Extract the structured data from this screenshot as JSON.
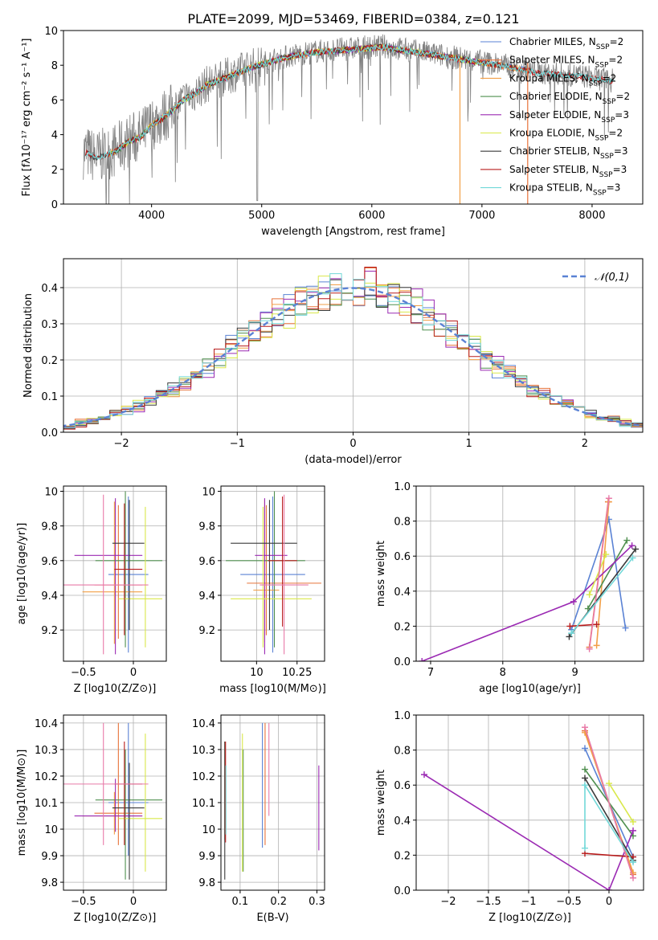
{
  "figure": {
    "title": "PLATE=2099, MJD=53469, FIBERID=0384, z=0.121"
  },
  "chart_data": [
    {
      "id": "spectrum",
      "type": "line",
      "xlabel": "wavelength [Angstrom, rest frame]",
      "ylabel": "Flux [fλ10⁻¹⁷ erg cm⁻² s⁻¹ A⁻¹]",
      "xlim": [
        3200,
        8460
      ],
      "ylim": [
        0,
        10
      ],
      "xticks": [
        4000,
        5000,
        6000,
        7000,
        8000
      ],
      "yticks": [
        0,
        2,
        4,
        6,
        8,
        10
      ],
      "grid": false,
      "legend_position": "top-right",
      "data_color": "#808080",
      "series": [
        {
          "name": "Chabrier MILES, N_SSP=2",
          "color": "#5a82d4"
        },
        {
          "name": "Salpeter MILES, N_SSP=2",
          "color": "#e8733a"
        },
        {
          "name": "Kroupa MILES, N_SSP=2",
          "color": "#f29f47"
        },
        {
          "name": "Chabrier ELODIE, N_SSP=2",
          "color": "#4f8f4f"
        },
        {
          "name": "Salpeter ELODIE, N_SSP=3",
          "color": "#9b2ab3"
        },
        {
          "name": "Kroupa ELODIE, N_SSP=2",
          "color": "#d9e84a"
        },
        {
          "name": "Chabrier STELIB, N_SSP=3",
          "color": "#3a3a3a"
        },
        {
          "name": "Salpeter STELIB, N_SSP=3",
          "color": "#b81d1d"
        },
        {
          "name": "Kroupa STELIB, N_SSP=3",
          "color": "#72d8d8"
        }
      ],
      "continuum_x": [
        3400,
        3500,
        3600,
        3700,
        3800,
        3900,
        4000,
        4100,
        4200,
        4300,
        4400,
        4500,
        4700,
        4900,
        5100,
        5300,
        5500,
        5700,
        5900,
        6100,
        6300,
        6500,
        6700,
        6900,
        7100,
        7300,
        7500,
        7700,
        7900,
        8100,
        8200
      ],
      "continuum_y": [
        3.0,
        2.7,
        2.9,
        3.2,
        3.7,
        3.9,
        4.6,
        5.0,
        5.5,
        6.1,
        6.4,
        6.9,
        7.4,
        7.9,
        8.3,
        8.6,
        8.8,
        8.9,
        9.0,
        9.1,
        8.9,
        8.7,
        8.5,
        8.3,
        8.1,
        7.9,
        7.6,
        7.5,
        7.4,
        7.2,
        7.1
      ],
      "annotations": [
        {
          "text": "PLATE=2099, MJD=53469, FIBERID=0384, z=0.121"
        }
      ]
    },
    {
      "id": "residuals",
      "type": "line",
      "xlabel": "(data-model)/error",
      "ylabel": "Normed distribution",
      "xlim": [
        -2.5,
        2.5
      ],
      "ylim": [
        0,
        0.48
      ],
      "xticks": [
        -2,
        -1,
        0,
        1,
        2
      ],
      "yticks": [
        0.0,
        0.1,
        0.2,
        0.3,
        0.4
      ],
      "grid": true,
      "legend_position": "top-right",
      "reference": {
        "name": "𝒩(0,1)",
        "color": "#5a82d4",
        "mu": 0,
        "sigma": 1
      }
    },
    {
      "id": "age-vs-Z",
      "type": "scatter",
      "xlabel": "Z [log10(Z/Z⊙)]",
      "ylabel": "age  [log10(age/yr)]",
      "xlim": [
        -0.7,
        0.33
      ],
      "ylim": [
        9.02,
        10.03
      ],
      "xticks": [
        -0.5,
        0.0
      ],
      "yticks": [
        9.2,
        9.4,
        9.6,
        9.8,
        10.0
      ],
      "grid": true,
      "points": [
        {
          "x": -0.05,
          "y": 9.52,
          "xerr": [
            0.2,
            0.2
          ],
          "yerr": [
            0.45,
            0.45
          ],
          "color": "#5a82d4"
        },
        {
          "x": -0.15,
          "y": 9.46,
          "xerr": [
            0.24,
            0.24
          ],
          "yerr": [
            0.31,
            0.46
          ],
          "color": "#e8733a"
        },
        {
          "x": -0.19,
          "y": 9.42,
          "xerr": [
            0.32,
            0.28
          ],
          "yerr": [
            0.3,
            0.52
          ],
          "color": "#f29f47"
        },
        {
          "x": -0.08,
          "y": 9.6,
          "xerr": [
            0.3,
            0.37
          ],
          "yerr": [
            0.5,
            0.4
          ],
          "color": "#4f8f4f"
        },
        {
          "x": -0.18,
          "y": 9.63,
          "xerr": [
            0.41,
            0.27
          ],
          "yerr": [
            0.57,
            0.33
          ],
          "color": "#9b2ab3"
        },
        {
          "x": 0.12,
          "y": 9.38,
          "xerr": [
            0.27,
            0.17
          ],
          "yerr": [
            0.28,
            0.53
          ],
          "color": "#d9e84a"
        },
        {
          "x": -0.04,
          "y": 9.7,
          "xerr": [
            0.17,
            0.15
          ],
          "yerr": [
            0.5,
            0.25
          ],
          "color": "#3a3a3a"
        },
        {
          "x": -0.09,
          "y": 9.55,
          "xerr": [
            0.1,
            0.18
          ],
          "yerr": [
            0.38,
            0.38
          ],
          "color": "#b81d1d"
        },
        {
          "x": -0.3,
          "y": 9.46,
          "xerr": [
            0.4,
            0.45
          ],
          "yerr": [
            0.4,
            0.52
          ],
          "color": "#e87aa8"
        }
      ]
    },
    {
      "id": "age-vs-mass",
      "type": "scatter",
      "xlabel": "mass [log10(M/M⊙)]",
      "ylabel": "",
      "xlim": [
        9.78,
        10.42
      ],
      "ylim": [
        9.02,
        10.03
      ],
      "xticks": [
        10.0,
        10.25
      ],
      "yticks": [
        9.2,
        9.4,
        9.6,
        9.8,
        10.0
      ],
      "grid": true,
      "points": [
        {
          "x": 10.1,
          "y": 9.52,
          "xerr": [
            0.2,
            0.2
          ],
          "yerr": [
            0.45,
            0.45
          ],
          "color": "#5a82d4"
        },
        {
          "x": 10.06,
          "y": 9.47,
          "xerr": [
            0.12,
            0.34
          ],
          "yerr": [
            0.3,
            0.45
          ],
          "color": "#e8733a"
        },
        {
          "x": 10.05,
          "y": 9.43,
          "xerr": [
            0.07,
            0.09
          ],
          "yerr": [
            0.3,
            0.52
          ],
          "color": "#f29f47"
        },
        {
          "x": 10.11,
          "y": 9.6,
          "xerr": [
            0.3,
            0.19
          ],
          "yerr": [
            0.5,
            0.4
          ],
          "color": "#4f8f4f"
        },
        {
          "x": 10.05,
          "y": 9.63,
          "xerr": [
            0.06,
            0.14
          ],
          "yerr": [
            0.57,
            0.33
          ],
          "color": "#9b2ab3"
        },
        {
          "x": 10.04,
          "y": 9.38,
          "xerr": [
            0.2,
            0.3
          ],
          "yerr": [
            0.28,
            0.53
          ],
          "color": "#d9e84a"
        },
        {
          "x": 10.08,
          "y": 9.7,
          "xerr": [
            0.24,
            0.17
          ],
          "yerr": [
            0.5,
            0.25
          ],
          "color": "#3a3a3a"
        },
        {
          "x": 10.16,
          "y": 9.6,
          "xerr": [
            0.09,
            0.09
          ],
          "yerr": [
            0.38,
            0.37
          ],
          "color": "#b81d1d"
        },
        {
          "x": 10.17,
          "y": 9.46,
          "xerr": [
            0.15,
            0.15
          ],
          "yerr": [
            0.4,
            0.52
          ],
          "color": "#e87aa8"
        }
      ]
    },
    {
      "id": "massweight-vs-age",
      "type": "line",
      "xlabel": "age  [log10(age/yr)]",
      "ylabel": "mass weight",
      "xlim": [
        6.8,
        9.95
      ],
      "ylim": [
        0,
        1
      ],
      "xticks": [
        7,
        8,
        9
      ],
      "yticks": [
        0.0,
        0.2,
        0.4,
        0.6,
        0.8,
        1.0
      ],
      "grid": true,
      "series": [
        {
          "color": "#5a82d4",
          "x": [
            8.95,
            9.47,
            9.7
          ],
          "y": [
            0.18,
            0.81,
            0.19
          ]
        },
        {
          "color": "#e8733a",
          "x": [
            9.2,
            9.46
          ],
          "y": [
            0.08,
            0.91
          ]
        },
        {
          "color": "#f29f47",
          "x": [
            9.3,
            9.47
          ],
          "y": [
            0.09,
            0.91
          ]
        },
        {
          "color": "#4f8f4f",
          "x": [
            9.18,
            9.72
          ],
          "y": [
            0.3,
            0.69
          ]
        },
        {
          "color": "#9b2ab3",
          "x": [
            6.88,
            8.98,
            9.79
          ],
          "y": [
            0.0,
            0.34,
            0.66
          ]
        },
        {
          "color": "#d9e84a",
          "x": [
            9.2,
            9.43
          ],
          "y": [
            0.38,
            0.61
          ]
        },
        {
          "color": "#3a3a3a",
          "x": [
            8.92,
            9.84
          ],
          "y": [
            0.14,
            0.64
          ]
        },
        {
          "color": "#b81d1d",
          "x": [
            8.93,
            9.3
          ],
          "y": [
            0.2,
            0.21
          ]
        },
        {
          "color": "#e87aa8",
          "x": [
            9.2,
            9.47
          ],
          "y": [
            0.07,
            0.93
          ]
        },
        {
          "color": "#72d8d8",
          "x": [
            8.95,
            9.8
          ],
          "y": [
            0.16,
            0.59
          ]
        }
      ]
    },
    {
      "id": "mass-vs-Z",
      "type": "scatter",
      "xlabel": "Z [log10(Z/Z⊙)]",
      "ylabel": "mass [log10(M/M⊙)]",
      "xlim": [
        -0.7,
        0.33
      ],
      "ylim": [
        9.77,
        10.43
      ],
      "xticks": [
        -0.5,
        0.0
      ],
      "yticks": [
        9.8,
        9.9,
        10.0,
        10.1,
        10.2,
        10.3,
        10.4
      ],
      "grid": true,
      "points": [
        {
          "x": -0.05,
          "y": 10.1,
          "xerr": [
            0.2,
            0.2
          ],
          "yerr": [
            0.2,
            0.3
          ],
          "color": "#5a82d4"
        },
        {
          "x": -0.15,
          "y": 10.06,
          "xerr": [
            0.24,
            0.24
          ],
          "yerr": [
            0.12,
            0.34
          ],
          "color": "#e8733a"
        },
        {
          "x": -0.19,
          "y": 10.05,
          "xerr": [
            0.32,
            0.28
          ],
          "yerr": [
            0.07,
            0.09
          ],
          "color": "#f29f47"
        },
        {
          "x": -0.08,
          "y": 10.11,
          "xerr": [
            0.3,
            0.37
          ],
          "yerr": [
            0.3,
            0.19
          ],
          "color": "#4f8f4f"
        },
        {
          "x": -0.18,
          "y": 10.05,
          "xerr": [
            0.41,
            0.27
          ],
          "yerr": [
            0.06,
            0.14
          ],
          "color": "#9b2ab3"
        },
        {
          "x": 0.12,
          "y": 10.04,
          "xerr": [
            0.27,
            0.17
          ],
          "yerr": [
            0.2,
            0.32
          ],
          "color": "#d9e84a"
        },
        {
          "x": -0.04,
          "y": 10.08,
          "xerr": [
            0.17,
            0.15
          ],
          "yerr": [
            0.27,
            0.17
          ],
          "color": "#3a3a3a"
        },
        {
          "x": -0.09,
          "y": 10.17,
          "xerr": [
            0.1,
            0.18
          ],
          "yerr": [
            0.23,
            0.16
          ],
          "color": "#b81d1d"
        },
        {
          "x": -0.3,
          "y": 10.17,
          "xerr": [
            0.4,
            0.45
          ],
          "yerr": [
            0.23,
            0.23
          ],
          "color": "#e87aa8"
        }
      ]
    },
    {
      "id": "mass-vs-ebv",
      "type": "scatter",
      "xlabel": "E(B-V)",
      "ylabel": "",
      "xlim": [
        0.05,
        0.32
      ],
      "ylim": [
        9.77,
        10.43
      ],
      "xticks": [
        0.1,
        0.2,
        0.3
      ],
      "yticks": [
        9.8,
        9.9,
        10.0,
        10.1,
        10.2,
        10.3,
        10.4
      ],
      "grid": true,
      "points": [
        {
          "x": 0.158,
          "y": 10.1,
          "yerr": [
            0.17,
            0.3
          ],
          "color": "#5a82d4"
        },
        {
          "x": 0.165,
          "y": 10.06,
          "yerr": [
            0.12,
            0.34
          ],
          "color": "#e8733a"
        },
        {
          "x": 0.06,
          "y": 10.05,
          "yerr": [
            0.09,
            0.28
          ],
          "color": "#f29f47"
        },
        {
          "x": 0.108,
          "y": 10.11,
          "yerr": [
            0.27,
            0.19
          ],
          "color": "#4f8f4f"
        },
        {
          "x": 0.305,
          "y": 10.05,
          "yerr": [
            0.13,
            0.19
          ],
          "color": "#9b2ab3"
        },
        {
          "x": 0.106,
          "y": 10.04,
          "yerr": [
            0.2,
            0.32
          ],
          "color": "#d9e84a"
        },
        {
          "x": 0.06,
          "y": 10.04,
          "yerr": [
            0.23,
            0.29
          ],
          "color": "#3a3a3a"
        },
        {
          "x": 0.062,
          "y": 10.17,
          "yerr": [
            0.22,
            0.16
          ],
          "color": "#b81d1d"
        },
        {
          "x": 0.175,
          "y": 10.17,
          "yerr": [
            0.12,
            0.23
          ],
          "color": "#e87aa8"
        },
        {
          "x": 0.063,
          "y": 10.1,
          "yerr": [
            0.12,
            0.14
          ],
          "color": "#72d8d8"
        }
      ]
    },
    {
      "id": "massweight-vs-Z",
      "type": "line",
      "xlabel": "Z [log10(Z/Z⊙)]",
      "ylabel": "mass weight",
      "xlim": [
        -2.4,
        0.43
      ],
      "ylim": [
        0,
        1
      ],
      "xticks": [
        -2.0,
        -1.5,
        -1.0,
        -0.5,
        0.0
      ],
      "yticks": [
        0.0,
        0.2,
        0.4,
        0.6,
        0.8,
        1.0
      ],
      "grid": true,
      "series": [
        {
          "color": "#5a82d4",
          "x": [
            -0.3,
            0.3
          ],
          "y": [
            0.81,
            0.19
          ]
        },
        {
          "color": "#e8733a",
          "x": [
            -0.3,
            0.3
          ],
          "y": [
            0.91,
            0.09
          ]
        },
        {
          "color": "#f29f47",
          "x": [
            -0.3,
            0.3
          ],
          "y": [
            0.9,
            0.1
          ]
        },
        {
          "color": "#4f8f4f",
          "x": [
            -0.3,
            0.3
          ],
          "y": [
            0.69,
            0.31
          ]
        },
        {
          "color": "#9b2ab3",
          "x": [
            -2.3,
            0.0,
            0.3
          ],
          "y": [
            0.66,
            0.0,
            0.34
          ]
        },
        {
          "color": "#d9e84a",
          "x": [
            0.0,
            0.3
          ],
          "y": [
            0.61,
            0.39
          ]
        },
        {
          "color": "#3a3a3a",
          "x": [
            -0.3,
            0.3
          ],
          "y": [
            0.64,
            0.17
          ]
        },
        {
          "color": "#b81d1d",
          "x": [
            -0.3,
            0.3
          ],
          "y": [
            0.21,
            0.19
          ]
        },
        {
          "color": "#e87aa8",
          "x": [
            -0.3,
            0.3
          ],
          "y": [
            0.93,
            0.07
          ]
        },
        {
          "color": "#72d8d8",
          "x": [
            -0.3,
            -0.3,
            0.3
          ],
          "y": [
            0.24,
            0.6,
            0.16
          ]
        }
      ]
    }
  ]
}
